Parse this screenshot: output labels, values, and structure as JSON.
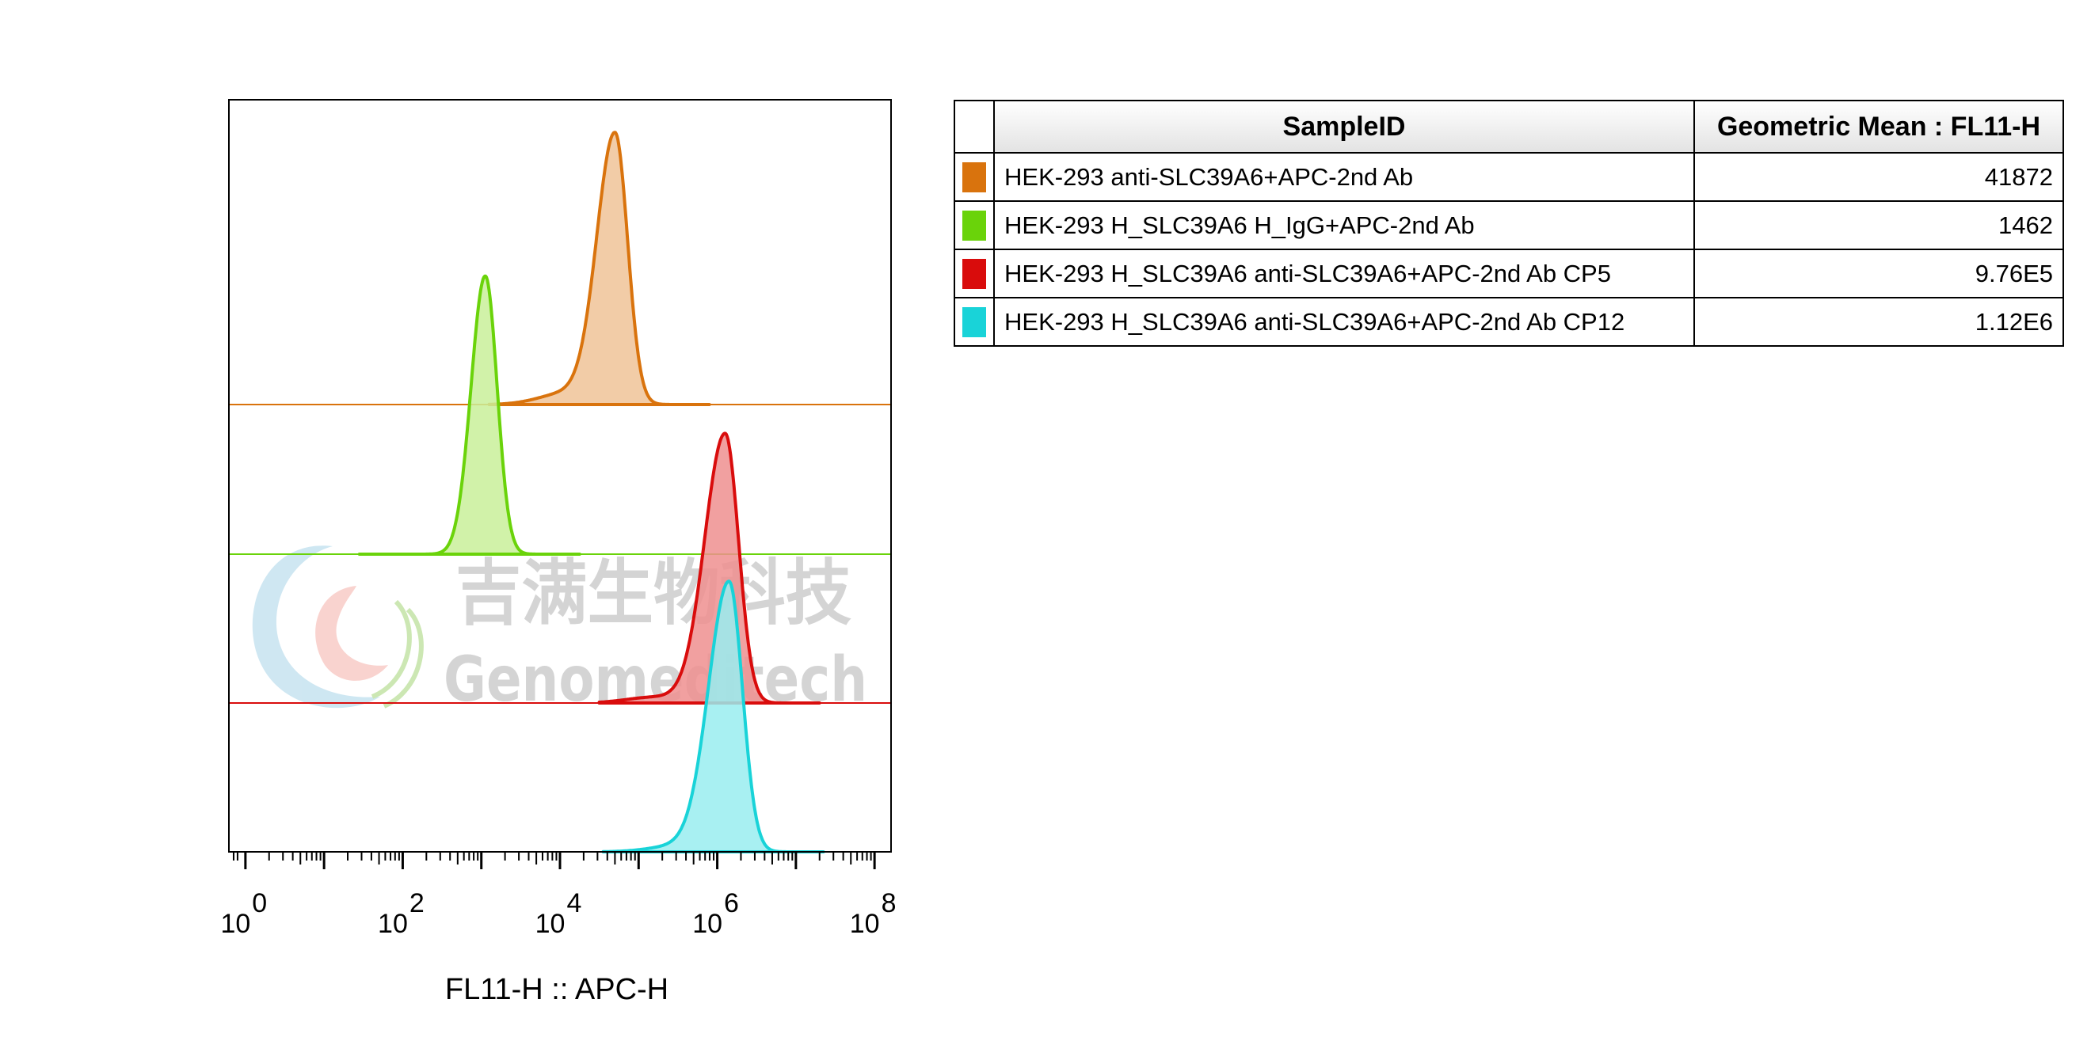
{
  "chart_data": {
    "type": "histogram",
    "layout": "offset-overlay (stacked lanes)",
    "xlabel": "FL11-H :: APC-H",
    "x_scale": "log10",
    "xlim": [
      -0.2,
      8.2
    ],
    "x_ticks": [
      {
        "exp": 0,
        "base": "10",
        "sup": "0"
      },
      {
        "exp": 2,
        "base": "10",
        "sup": "2"
      },
      {
        "exp": 4,
        "base": "10",
        "sup": "4"
      },
      {
        "exp": 6,
        "base": "10",
        "sup": "6"
      },
      {
        "exp": 8,
        "base": "10",
        "sup": "8"
      }
    ],
    "series": [
      {
        "name": "HEK-293 anti-SLC39A6+APC-2nd Ab",
        "color": "#d9730d",
        "fill": "#f0c398",
        "lane": 3,
        "peak_log": 4.7,
        "peak_height_rel": 0.92,
        "width_left": 0.23,
        "width_right": 0.16,
        "shoulder_log": 4.1,
        "shoulder_height_rel": 0.04
      },
      {
        "name": "HEK-293 H_SLC39A6 H_IgG+APC-2nd Ab",
        "color": "#6ad30a",
        "fill": "#c9f09a",
        "lane": 2,
        "peak_log": 3.05,
        "peak_height_rel": 0.95,
        "width_left": 0.18,
        "width_right": 0.15,
        "shoulder_log": 0,
        "shoulder_height_rel": 0
      },
      {
        "name": "HEK-293 H_SLC39A6 anti-SLC39A6+APC-2nd Ab CP5",
        "color": "#d90c0c",
        "fill": "#ef8f8f",
        "lane": 1,
        "peak_log": 6.1,
        "peak_height_rel": 0.92,
        "width_left": 0.26,
        "width_right": 0.17,
        "shoulder_log": 5.2,
        "shoulder_height_rel": 0.02
      },
      {
        "name": "HEK-293 H_SLC39A6 anti-SLC39A6+APC-2nd Ab CP12",
        "color": "#19d3d8",
        "fill": "#99edf0",
        "lane": 0,
        "peak_log": 6.15,
        "peak_height_rel": 0.92,
        "width_left": 0.26,
        "width_right": 0.17,
        "shoulder_log": 5.5,
        "shoulder_height_rel": 0.02
      }
    ]
  },
  "legend_table": {
    "headers": {
      "sample": "SampleID",
      "mean": "Geometric Mean : FL11-H"
    },
    "rows": [
      {
        "sample": "HEK-293 anti-SLC39A6+APC-2nd Ab",
        "mean": "41872",
        "color": "#d9730d"
      },
      {
        "sample": "HEK-293 H_SLC39A6 H_IgG+APC-2nd Ab",
        "mean": "1462",
        "color": "#6ad30a"
      },
      {
        "sample": "HEK-293 H_SLC39A6 anti-SLC39A6+APC-2nd Ab CP5",
        "mean": "9.76E5",
        "color": "#d90c0c"
      },
      {
        "sample": "HEK-293 H_SLC39A6 anti-SLC39A6+APC-2nd Ab CP12",
        "mean": "1.12E6",
        "color": "#19d3d8"
      }
    ]
  },
  "watermark": {
    "cn": "吉满生物科技",
    "en": "Genomeditech",
    "color": "#bdbdbd"
  }
}
